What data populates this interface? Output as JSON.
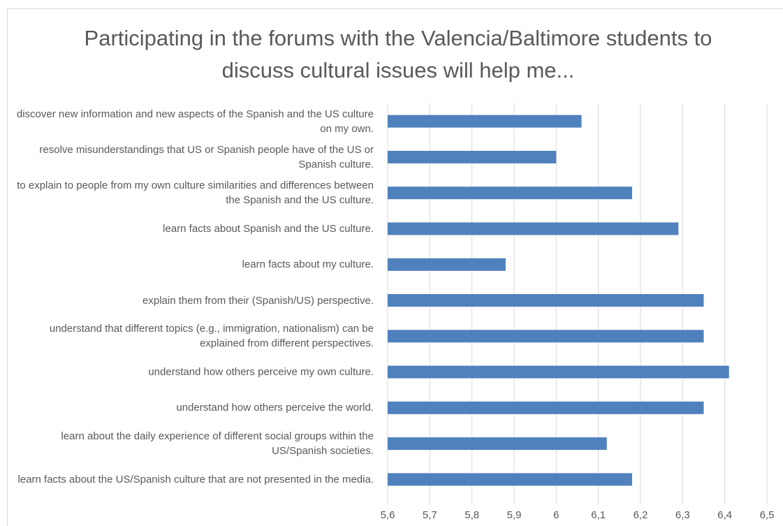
{
  "chart_data": {
    "type": "bar",
    "orientation": "horizontal",
    "title": "Participating in the forums with the Valencia/Baltimore students to discuss cultural issues will help me...",
    "categories": [
      "discover new information and new aspects of the Spanish and the US culture on my own.",
      "resolve misunderstandings that US or Spanish people have of the US or Spanish culture.",
      "to explain to people from my own culture similarities and differences between the Spanish and the US culture.",
      "learn facts about Spanish and the US culture.",
      "learn facts about my culture.",
      "explain them from their (Spanish/US) perspective.",
      "understand that different topics (e.g., immigration, nationalism) can be explained from different perspectives.",
      "understand how others perceive my own culture.",
      "understand how others perceive the world.",
      "learn about the daily experience of different social groups within the US/Spanish societies.",
      "learn facts about the US/Spanish culture that are not presented in the media."
    ],
    "values": [
      6.06,
      6.0,
      6.18,
      6.29,
      5.88,
      6.35,
      6.35,
      6.41,
      6.35,
      6.12,
      6.18
    ],
    "color": "#4f81bd",
    "xlim": [
      5.6,
      6.5
    ],
    "xticks": [
      {
        "value": 5.6,
        "label": "5,6"
      },
      {
        "value": 5.7,
        "label": "5,7"
      },
      {
        "value": 5.8,
        "label": "5,8"
      },
      {
        "value": 5.9,
        "label": "5,9"
      },
      6,
      {
        "value": 6.1,
        "label": "6,1"
      },
      {
        "value": 6.2,
        "label": "6,2"
      },
      {
        "value": 6.3,
        "label": "6,3"
      },
      {
        "value": 6.4,
        "label": "6,4"
      },
      {
        "value": 6.5,
        "label": "6,5"
      }
    ],
    "grid": true
  }
}
